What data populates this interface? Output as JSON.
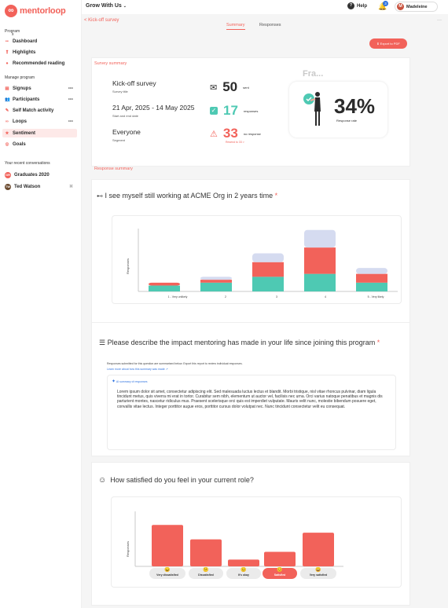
{
  "app": {
    "brand": "mentorloop",
    "org_selector": "Grow With Us",
    "help_label": "Help",
    "notifications": "3",
    "user_name": "Madeleine",
    "user_initial": "M"
  },
  "sidebar": {
    "program_label": "Program",
    "program_name": "x",
    "items": [
      {
        "label": "Dashboard",
        "icon": "▪▪"
      },
      {
        "label": "Highlights",
        "icon": "❢"
      },
      {
        "label": "Recommended reading",
        "icon": "●"
      },
      {
        "label": "Signups",
        "icon": "▤"
      },
      {
        "label": "Participants",
        "icon": "👥"
      },
      {
        "label": "Self Match activity",
        "icon": "✎"
      },
      {
        "label": "Loops",
        "icon": "∞"
      },
      {
        "label": "Sentiment",
        "icon": "★"
      },
      {
        "label": "Goals",
        "icon": "◎"
      }
    ],
    "manage_label": "Manage program",
    "recent_label": "Your recent conversations",
    "conversations": [
      {
        "label": "Graduates 2020",
        "initials": "GR"
      },
      {
        "label": "Ted Watson",
        "initials": "TW"
      }
    ]
  },
  "page": {
    "back_label": "< Kick-off survey",
    "tabs": [
      "Summary",
      "Responses"
    ],
    "export_label": "⬇ Export to PDF",
    "survey_summary_title": "Survey summary",
    "response_summary_title": "Response summary"
  },
  "summary": {
    "survey_title": "Kick-off survey",
    "survey_title_sub": "Survey title",
    "dates": "21 Apr, 2025 - 14 May 2025",
    "dates_sub": "Start and end date",
    "segment": "Everyone",
    "segment_sub": "Segment",
    "sent": "50",
    "sent_label": "sent",
    "responses": "17",
    "responses_label": "responses",
    "no_response": "33",
    "no_response_label": "no response",
    "no_response_link": "Resend to 33 >",
    "rate_card_title": "Fra...",
    "rate": "34%",
    "rate_label": "Response rate"
  },
  "q1": {
    "text": "I see myself still working at ACME Org in 2 years time",
    "required": "*",
    "ylabel": "Responses",
    "ticks": [
      "1 - Very unlikely",
      "2",
      "3",
      "4",
      "5 - Very likely"
    ]
  },
  "q2": {
    "text": "Please describe the impact mentoring has made in your life since joining this program",
    "required": "*",
    "note": "Responses submitted for this question are summarised below. Export this report to review individual responses.",
    "note_link": "Learn more about how this summary was made ↗",
    "ai_label": "AI summary of responses",
    "ai_text": "Lorem ipsum dolor sit amet, consectetur adipiscing elit. Sed malesuada luctus lectus et blandit. Morbi tristique, nisl vitae rhoncus pulvinar, diam ligula tincidunt metus, quis viverra mi erat in tortor. Curabitur sem nibh, elementum ut auctor vel, facilisis nec urna. Orci varius natoque penatibus et magnis dis parturient montes, nascetur ridiculus mus. Praesent scelerisque orci quis est imperdiet vulputate. Mauris velit nunc, molestie bibendum posuere eget, convallis vitae lectus. Integer porttitor augue eros, porttitor cursus dolor volutpat nec. Nunc tincidunt consectetur velit eu consequat."
  },
  "q3": {
    "text": "How satisfied do you feel in your current role?",
    "ylabel": "Responses",
    "labels": [
      "Very dissatisfied",
      "Dissatisfied",
      "It's okay",
      "Satisfied",
      "Very satisfied"
    ],
    "faces": [
      "😖",
      "😕",
      "😐",
      "😊",
      "😄"
    ]
  },
  "colors": {
    "brand": "#f2625a",
    "teal": "#4ec9b3",
    "lavender": "#d5dbf0",
    "highlight": "#f2625a"
  },
  "chart_data": [
    {
      "type": "bar",
      "stacked": true,
      "categories": [
        "1 - Very unlikely",
        "2",
        "3",
        "4",
        "5 - Very likely"
      ],
      "series": [
        {
          "values": [
            2,
            3,
            5,
            6,
            3
          ]
        },
        {
          "values": [
            1,
            1,
            5,
            9,
            3
          ]
        },
        {
          "values": [
            0,
            1,
            3,
            6,
            2
          ]
        }
      ],
      "ylabel": "Responses",
      "ylim": [
        0,
        22
      ]
    },
    {
      "type": "bar",
      "categories": [
        "Very dissatisfied",
        "Dissatisfied",
        "It's okay",
        "Satisfied",
        "Very satisfied"
      ],
      "values": [
        8,
        5.2,
        1.3,
        2.8,
        6.5
      ],
      "highlight": "Satisfied",
      "ylabel": "Responses",
      "ylim": [
        0,
        10
      ]
    }
  ]
}
